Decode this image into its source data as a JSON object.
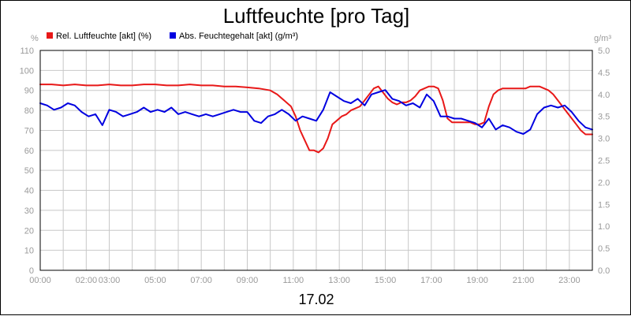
{
  "chart_data": {
    "type": "line",
    "title": "Luftfeuchte [pro Tag]",
    "date_label": "17.02",
    "y_left_unit": "%",
    "y_right_unit": "g/m³",
    "ylim_left": [
      0,
      110
    ],
    "ylim_right": [
      0,
      5
    ],
    "y_left_ticks": [
      0,
      10,
      20,
      30,
      40,
      50,
      60,
      70,
      80,
      90,
      100,
      110
    ],
    "y_right_ticks": [
      "0.0",
      "0.5",
      "1.0",
      "1.5",
      "2.0",
      "2.5",
      "3.0",
      "3.5",
      "4.0",
      "4.5",
      "5.0"
    ],
    "xlim": [
      0,
      24
    ],
    "x_tick_labels": [
      {
        "t": 0,
        "label": "00:00"
      },
      {
        "t": 2,
        "label": "02:00"
      },
      {
        "t": 3,
        "label": "03:00"
      },
      {
        "t": 5,
        "label": "05:00"
      },
      {
        "t": 7,
        "label": "07:00"
      },
      {
        "t": 9,
        "label": "09:00"
      },
      {
        "t": 11,
        "label": "11:00"
      },
      {
        "t": 13,
        "label": "13:00"
      },
      {
        "t": 15,
        "label": "15:00"
      },
      {
        "t": 17,
        "label": "17:00"
      },
      {
        "t": 19,
        "label": "19:00"
      },
      {
        "t": 21,
        "label": "21:00"
      },
      {
        "t": 23,
        "label": "23:00"
      }
    ],
    "grid": true,
    "legend_position": "top-left",
    "series": [
      {
        "name": "Rel. Luftfeuchte [akt] (%)",
        "axis": "left",
        "color": "#e81818",
        "x": [
          0,
          0.5,
          1,
          1.5,
          2,
          2.5,
          3,
          3.5,
          4,
          4.5,
          5,
          5.5,
          6,
          6.5,
          7,
          7.5,
          8,
          8.5,
          9,
          9.5,
          10,
          10.3,
          10.6,
          10.9,
          11.1,
          11.3,
          11.5,
          11.7,
          11.9,
          12.1,
          12.3,
          12.5,
          12.7,
          12.9,
          13.1,
          13.3,
          13.5,
          13.7,
          13.9,
          14.1,
          14.3,
          14.5,
          14.7,
          14.9,
          15.1,
          15.3,
          15.5,
          15.7,
          15.9,
          16.1,
          16.3,
          16.5,
          16.7,
          16.9,
          17.1,
          17.3,
          17.5,
          17.7,
          17.9,
          18.1,
          18.3,
          18.5,
          18.7,
          18.9,
          19.1,
          19.3,
          19.5,
          19.7,
          19.9,
          20.1,
          20.3,
          20.5,
          20.7,
          20.9,
          21.1,
          21.3,
          21.5,
          21.7,
          21.9,
          22.1,
          22.3,
          22.5,
          22.7,
          22.9,
          23.1,
          23.3,
          23.5,
          23.7,
          23.9,
          24
        ],
        "values": [
          93,
          93,
          92.5,
          93,
          92.5,
          92.5,
          93,
          92.5,
          92.5,
          93,
          93,
          92.5,
          92.5,
          93,
          92.5,
          92.5,
          92,
          92,
          91.5,
          91,
          90,
          88,
          85,
          82,
          77,
          70,
          65,
          60,
          60,
          59,
          61,
          66,
          73,
          75,
          77,
          78,
          80,
          81,
          82,
          85,
          88,
          91,
          92,
          89,
          86,
          84,
          83,
          84,
          84,
          85,
          87,
          90,
          91,
          92,
          92,
          91,
          85,
          76,
          74,
          74,
          74,
          74,
          74,
          73,
          73,
          74,
          82,
          88,
          90,
          91,
          91,
          91,
          91,
          91,
          91,
          92,
          92,
          92,
          91,
          90,
          88,
          85,
          82,
          79,
          76,
          73,
          70,
          68,
          68,
          68
        ]
      },
      {
        "name": "Abs. Feuchtegehalt [akt] (g/m³)",
        "axis": "right",
        "color": "#0000e0",
        "x": [
          0,
          0.3,
          0.6,
          0.9,
          1.2,
          1.5,
          1.8,
          2.1,
          2.4,
          2.7,
          3.0,
          3.3,
          3.6,
          3.9,
          4.2,
          4.5,
          4.8,
          5.1,
          5.4,
          5.7,
          6.0,
          6.3,
          6.6,
          6.9,
          7.2,
          7.5,
          7.8,
          8.1,
          8.4,
          8.7,
          9.0,
          9.3,
          9.6,
          9.9,
          10.2,
          10.5,
          10.8,
          11.1,
          11.4,
          11.7,
          12.0,
          12.3,
          12.6,
          12.9,
          13.2,
          13.5,
          13.8,
          14.1,
          14.4,
          14.7,
          15.0,
          15.3,
          15.6,
          15.9,
          16.2,
          16.5,
          16.8,
          17.1,
          17.4,
          17.7,
          18.0,
          18.3,
          18.6,
          18.9,
          19.2,
          19.5,
          19.8,
          20.1,
          20.4,
          20.7,
          21.0,
          21.3,
          21.6,
          21.9,
          22.2,
          22.5,
          22.8,
          23.1,
          23.4,
          23.7,
          24
        ],
        "values": [
          3.8,
          3.75,
          3.65,
          3.7,
          3.8,
          3.75,
          3.6,
          3.5,
          3.55,
          3.3,
          3.65,
          3.6,
          3.5,
          3.55,
          3.6,
          3.7,
          3.6,
          3.65,
          3.6,
          3.7,
          3.55,
          3.6,
          3.55,
          3.5,
          3.55,
          3.5,
          3.55,
          3.6,
          3.65,
          3.6,
          3.6,
          3.4,
          3.35,
          3.5,
          3.55,
          3.65,
          3.55,
          3.4,
          3.5,
          3.45,
          3.4,
          3.65,
          4.05,
          3.95,
          3.85,
          3.8,
          3.9,
          3.75,
          4.0,
          4.05,
          4.1,
          3.9,
          3.85,
          3.75,
          3.8,
          3.7,
          4.0,
          3.85,
          3.5,
          3.5,
          3.45,
          3.45,
          3.4,
          3.35,
          3.25,
          3.45,
          3.2,
          3.3,
          3.25,
          3.15,
          3.1,
          3.2,
          3.55,
          3.7,
          3.75,
          3.7,
          3.75,
          3.6,
          3.4,
          3.25,
          3.2
        ]
      }
    ]
  }
}
